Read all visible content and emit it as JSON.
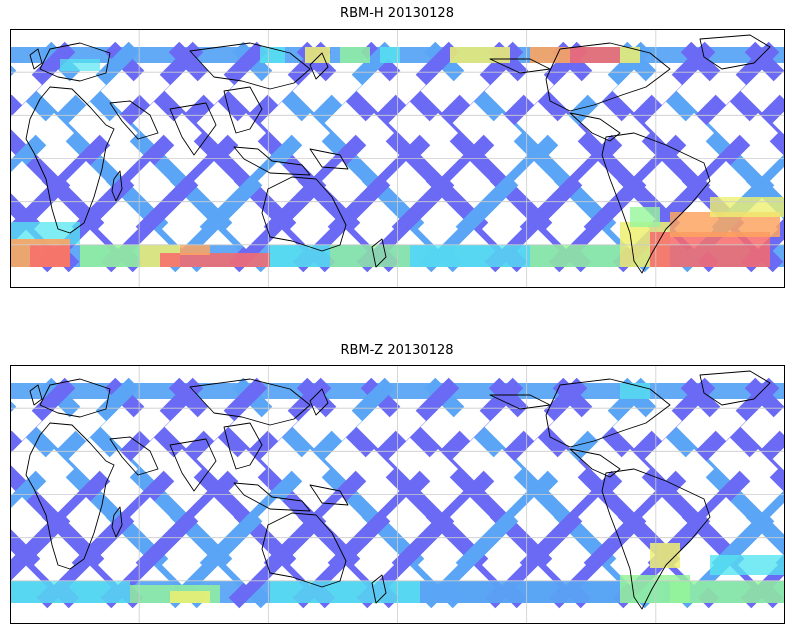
{
  "maps": [
    {
      "title": "RBM-H 20130128",
      "swath_colors": {
        "main": "#6a6af5",
        "alt": "#5aa5f5",
        "cyan": "#55e5f0",
        "green": "#95f59a",
        "yellow": "#eef070",
        "orange": "#fba460",
        "red": "#f86a6a"
      }
    },
    {
      "title": "RBM-Z 20130128",
      "swath_colors": {
        "main": "#6a6af5",
        "alt": "#5aa5f5",
        "cyan": "#55e5f0",
        "green": "#95f59a",
        "yellow": "#eef070",
        "orange": "#fba460",
        "red": "#f86a6a"
      }
    }
  ],
  "gridlines": true,
  "coastline_color": "#000000"
}
